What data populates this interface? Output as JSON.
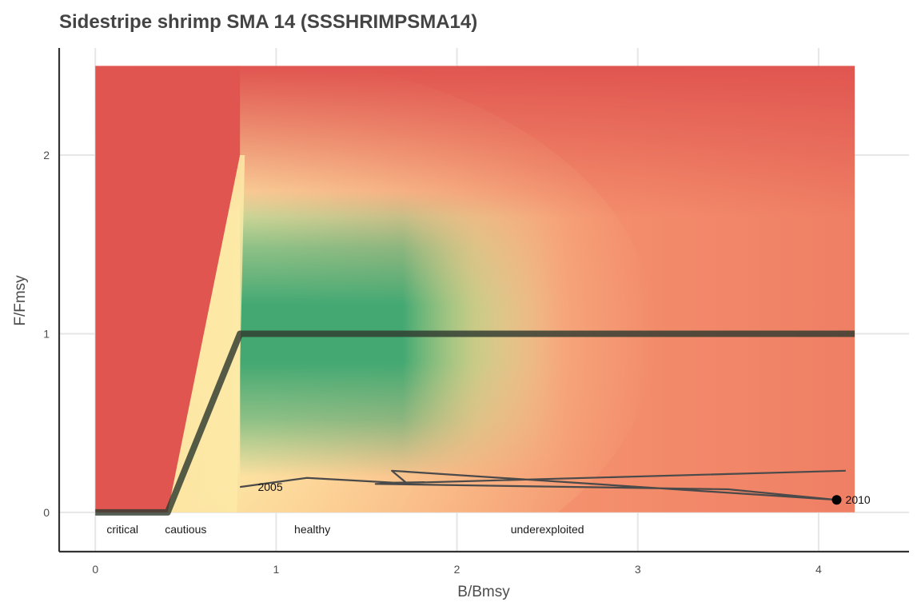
{
  "chart_data": {
    "type": "line",
    "title": "Sidestripe shrimp SMA 14 (SSSHRIMPSMA14)",
    "xlabel": "B/Bmsy",
    "ylabel": "F/Fmsy",
    "xlim": [
      -0.2,
      4.5
    ],
    "ylim": [
      -0.22,
      2.6
    ],
    "x_ticks": [
      "0",
      "1",
      "2",
      "3",
      "4"
    ],
    "y_ticks": [
      "0",
      "1",
      "2"
    ],
    "grid": true,
    "colors": {
      "red": "#e05550",
      "orange": "#fdae7b",
      "yellow": "#fdeba8",
      "light_green": "#dff0a5",
      "green": "#43a872",
      "reference_line": "#2f3b2f",
      "trajectory": "#4a4a4a"
    },
    "background_extent": {
      "x": [
        0,
        4.2
      ],
      "y": [
        0,
        2.5
      ]
    },
    "reference_line": {
      "x": [
        0,
        0.4,
        0.8,
        4.2
      ],
      "y": [
        0,
        0,
        1,
        1
      ]
    },
    "zones": [
      {
        "label": "critical",
        "x": 0.15
      },
      {
        "label": "cautious",
        "x": 0.5
      },
      {
        "label": "healthy",
        "x": 1.2
      },
      {
        "label": "underexploited",
        "x": 2.5
      }
    ],
    "trajectory": {
      "x": [
        0.8,
        1.17,
        1.65,
        1.82,
        1.55,
        3.5,
        4.1,
        1.64,
        1.72,
        4.15
      ],
      "y": [
        0.142,
        0.193,
        0.166,
        0.169,
        0.159,
        0.129,
        0.07,
        0.233,
        0.165,
        0.233
      ]
    },
    "annotations": [
      {
        "text": "2005",
        "x": 0.85,
        "y": 0.142
      },
      {
        "text": "2010",
        "x": 4.1,
        "y": 0.07
      }
    ],
    "highlight_point": {
      "x": 4.1,
      "y": 0.07
    }
  }
}
